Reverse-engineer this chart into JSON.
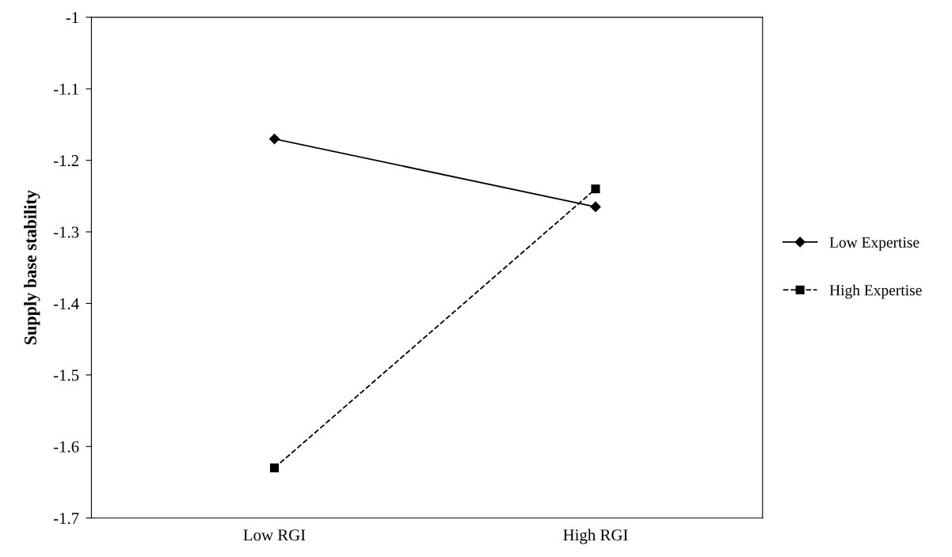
{
  "chart_data": {
    "type": "line",
    "ylabel": "Supply base stability",
    "categories": [
      "Low RGI",
      "High RGI"
    ],
    "series": [
      {
        "name": "Low Expertise",
        "color": "#000000",
        "values": [
          -1.17,
          -1.265
        ],
        "marker": "diamond",
        "line_style": "solid"
      },
      {
        "name": "High Expertise",
        "color": "#000000",
        "values": [
          -1.63,
          -1.24
        ],
        "marker": "square",
        "line_style": "dashed"
      }
    ],
    "ylim": [
      -1.7,
      -1
    ],
    "yticks": [
      -1.7,
      -1.6,
      -1.5,
      -1.4,
      -1.3,
      -1.2,
      -1.1,
      -1
    ],
    "grid": false,
    "legend": "right"
  }
}
